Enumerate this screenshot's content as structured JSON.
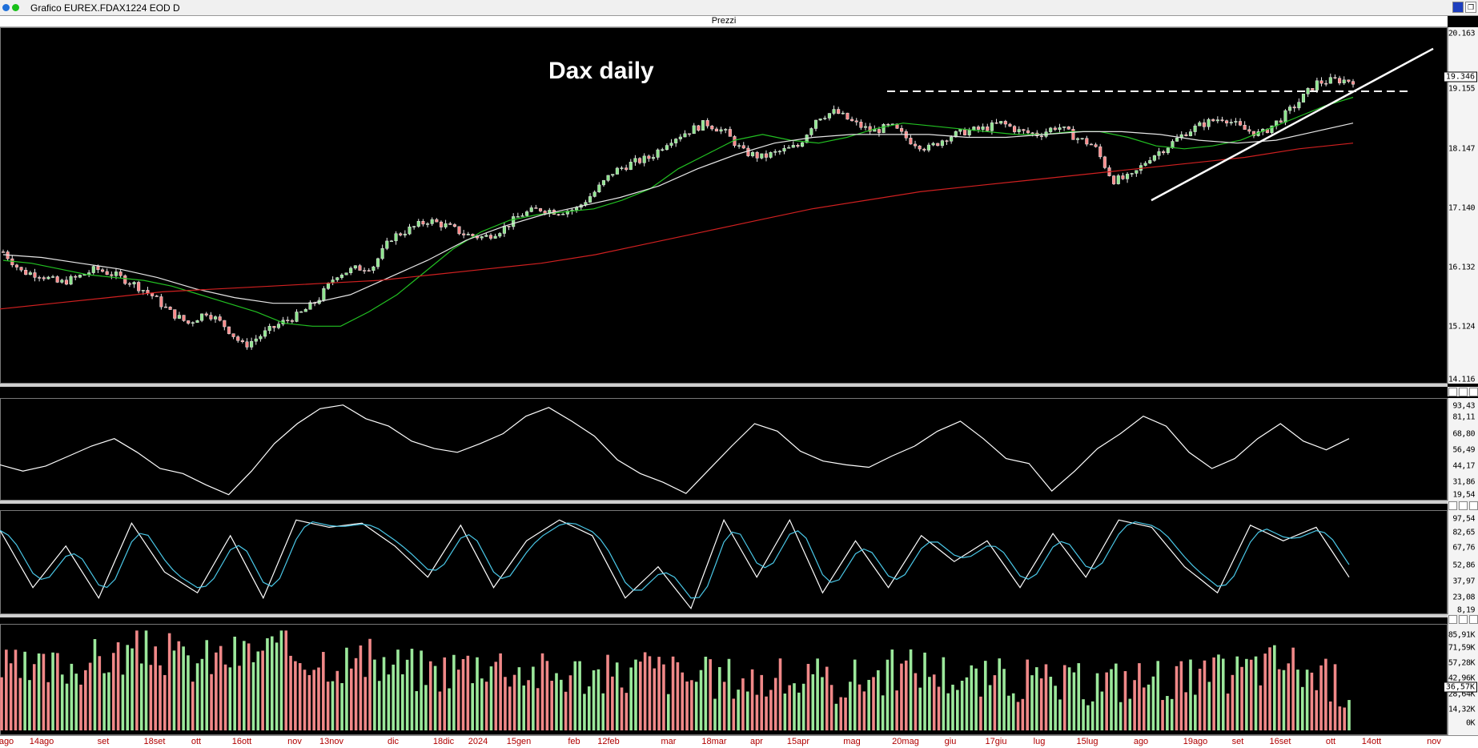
{
  "window": {
    "title": "Grafico EUREX.FDAX1224 EOD D",
    "colors": {
      "dot1": "#1e6fd9",
      "dot2": "#18c018"
    }
  },
  "price_panel": {
    "header": "Prezzi",
    "annotation": "Dax daily",
    "y_ticks": [
      "20.163",
      "19.155",
      "18.147",
      "17.140",
      "16.132",
      "15.124",
      "14.116"
    ],
    "last_price": "19.346",
    "tick_values": [
      20163,
      19155,
      18147,
      17140,
      16132,
      15124,
      14116
    ]
  },
  "rsi_panel": {
    "y_ticks": [
      "93,43",
      "81,11",
      "68,80",
      "56,49",
      "44,17",
      "31,86",
      "19,54"
    ],
    "tick_values": [
      93.43,
      81.11,
      68.8,
      56.49,
      44.17,
      31.86,
      19.54
    ]
  },
  "stoch_panel": {
    "y_ticks": [
      "97,54",
      "82,65",
      "67,76",
      "52,86",
      "37,97",
      "23,08",
      "8,19"
    ],
    "tick_values": [
      97.54,
      82.65,
      67.76,
      52.86,
      37.97,
      23.08,
      8.19
    ]
  },
  "volume_panel": {
    "y_ticks": [
      "85,91K",
      "71,59K",
      "57,28K",
      "42,96K",
      "28,64K",
      "14,32K",
      "0K"
    ],
    "last_volume": "36,57K",
    "tick_values": [
      85.91,
      71.59,
      57.28,
      42.96,
      28.64,
      14.32,
      0
    ]
  },
  "x_axis": {
    "labels": [
      "ago",
      "14ago",
      "set",
      "18set",
      "ott",
      "16ott",
      "nov",
      "13nov",
      "dic",
      "18dic",
      "2024",
      "15gen",
      "feb",
      "12feb",
      "mar",
      "18mar",
      "apr",
      "15apr",
      "mag",
      "20mag",
      "giu",
      "17giu",
      "lug",
      "15lug",
      "ago",
      "19ago",
      "set",
      "16set",
      "ott",
      "14ott",
      "nov"
    ]
  },
  "chart_data": {
    "type": "line",
    "title": "Dax daily",
    "xlabel": "",
    "ylabel": "",
    "x_range": [
      "ago 2023",
      "nov 2024"
    ],
    "ylim": [
      14116,
      20163
    ],
    "series": [
      {
        "values": [
          16350,
          16000,
          15950,
          15800,
          15900,
          16050,
          15950,
          15800,
          15600,
          15300,
          15100,
          15300,
          15050,
          14700,
          14900,
          15100,
          15250,
          15500,
          15950,
          16050,
          16100,
          16600,
          16750,
          16900,
          16800,
          16650,
          16600,
          16750,
          17000,
          17100,
          17050,
          17100,
          17400,
          17750,
          17900,
          18000,
          18300,
          18450,
          18600,
          18450,
          18100,
          18000,
          18100,
          18200,
          18700,
          18800,
          18600,
          18450,
          18550,
          18300,
          18150,
          18350,
          18450,
          18500,
          18600,
          18450,
          18400,
          18550,
          18350,
          18200,
          17600,
          17650,
          18000,
          18200,
          18450,
          18600,
          18700,
          18500,
          18400,
          18650,
          18950,
          19300,
          19350,
          19346
        ]
      },
      {
        "values": [
          16200,
          16150,
          16050,
          15950,
          15900,
          15850,
          15750,
          15600,
          15450,
          15300,
          15100,
          15050,
          15050,
          15300,
          15600,
          16000,
          16400,
          16700,
          16900,
          17000,
          17050,
          17100,
          17250,
          17450,
          17800,
          18050,
          18300,
          18400,
          18300,
          18250,
          18350,
          18500,
          18600,
          18550,
          18500,
          18450,
          18400,
          18400,
          18450,
          18450,
          18350,
          18200,
          18150,
          18200,
          18300,
          18500,
          18700,
          18900,
          19050
        ]
      },
      {
        "values": [
          16300,
          16250,
          16150,
          16050,
          15900,
          15700,
          15550,
          15450,
          15450,
          15600,
          15900,
          16200,
          16550,
          16800,
          17000,
          17150,
          17300,
          17500,
          17800,
          18050,
          18250,
          18350,
          18400,
          18400,
          18400,
          18350,
          18350,
          18400,
          18450,
          18450,
          18400,
          18300,
          18250,
          18300,
          18450,
          18600
        ]
      },
      {
        "values": [
          15350,
          15450,
          15550,
          15650,
          15700,
          15750,
          15800,
          15850,
          15950,
          16050,
          16150,
          16300,
          16500,
          16700,
          16900,
          17100,
          17250,
          17400,
          17500,
          17600,
          17700,
          17800,
          17900,
          18000,
          18150,
          18250
        ]
      }
    ],
    "rsi": [
      45,
      40,
      44,
      52,
      60,
      66,
      55,
      42,
      38,
      29,
      21,
      40,
      62,
      78,
      90,
      93,
      82,
      76,
      64,
      58,
      55,
      62,
      70,
      84,
      91,
      80,
      68,
      49,
      38,
      31,
      22,
      41,
      60,
      78,
      72,
      56,
      48,
      45,
      43,
      52,
      60,
      72,
      80,
      66,
      50,
      46,
      24,
      40,
      58,
      70,
      84,
      76,
      55,
      42,
      50,
      66,
      78,
      64,
      57,
      66
    ],
    "stochastic": [
      85,
      30,
      70,
      20,
      92,
      45,
      25,
      80,
      20,
      95,
      88,
      92,
      70,
      40,
      90,
      30,
      75,
      95,
      80,
      20,
      50,
      10,
      95,
      40,
      95,
      25,
      75,
      30,
      80,
      55,
      75,
      30,
      82,
      40,
      95,
      88,
      50,
      25,
      90,
      75,
      88,
      40
    ],
    "volume_k": [
      52,
      48,
      55,
      60,
      65,
      70,
      58,
      62,
      66,
      70,
      64,
      60,
      58,
      55,
      50,
      56,
      60,
      52,
      48,
      50,
      45,
      55,
      48,
      44,
      46,
      42,
      44,
      40,
      45,
      50,
      55,
      48,
      42,
      45,
      40,
      38,
      42,
      44,
      46,
      42,
      48,
      55,
      60,
      45,
      36
    ]
  }
}
